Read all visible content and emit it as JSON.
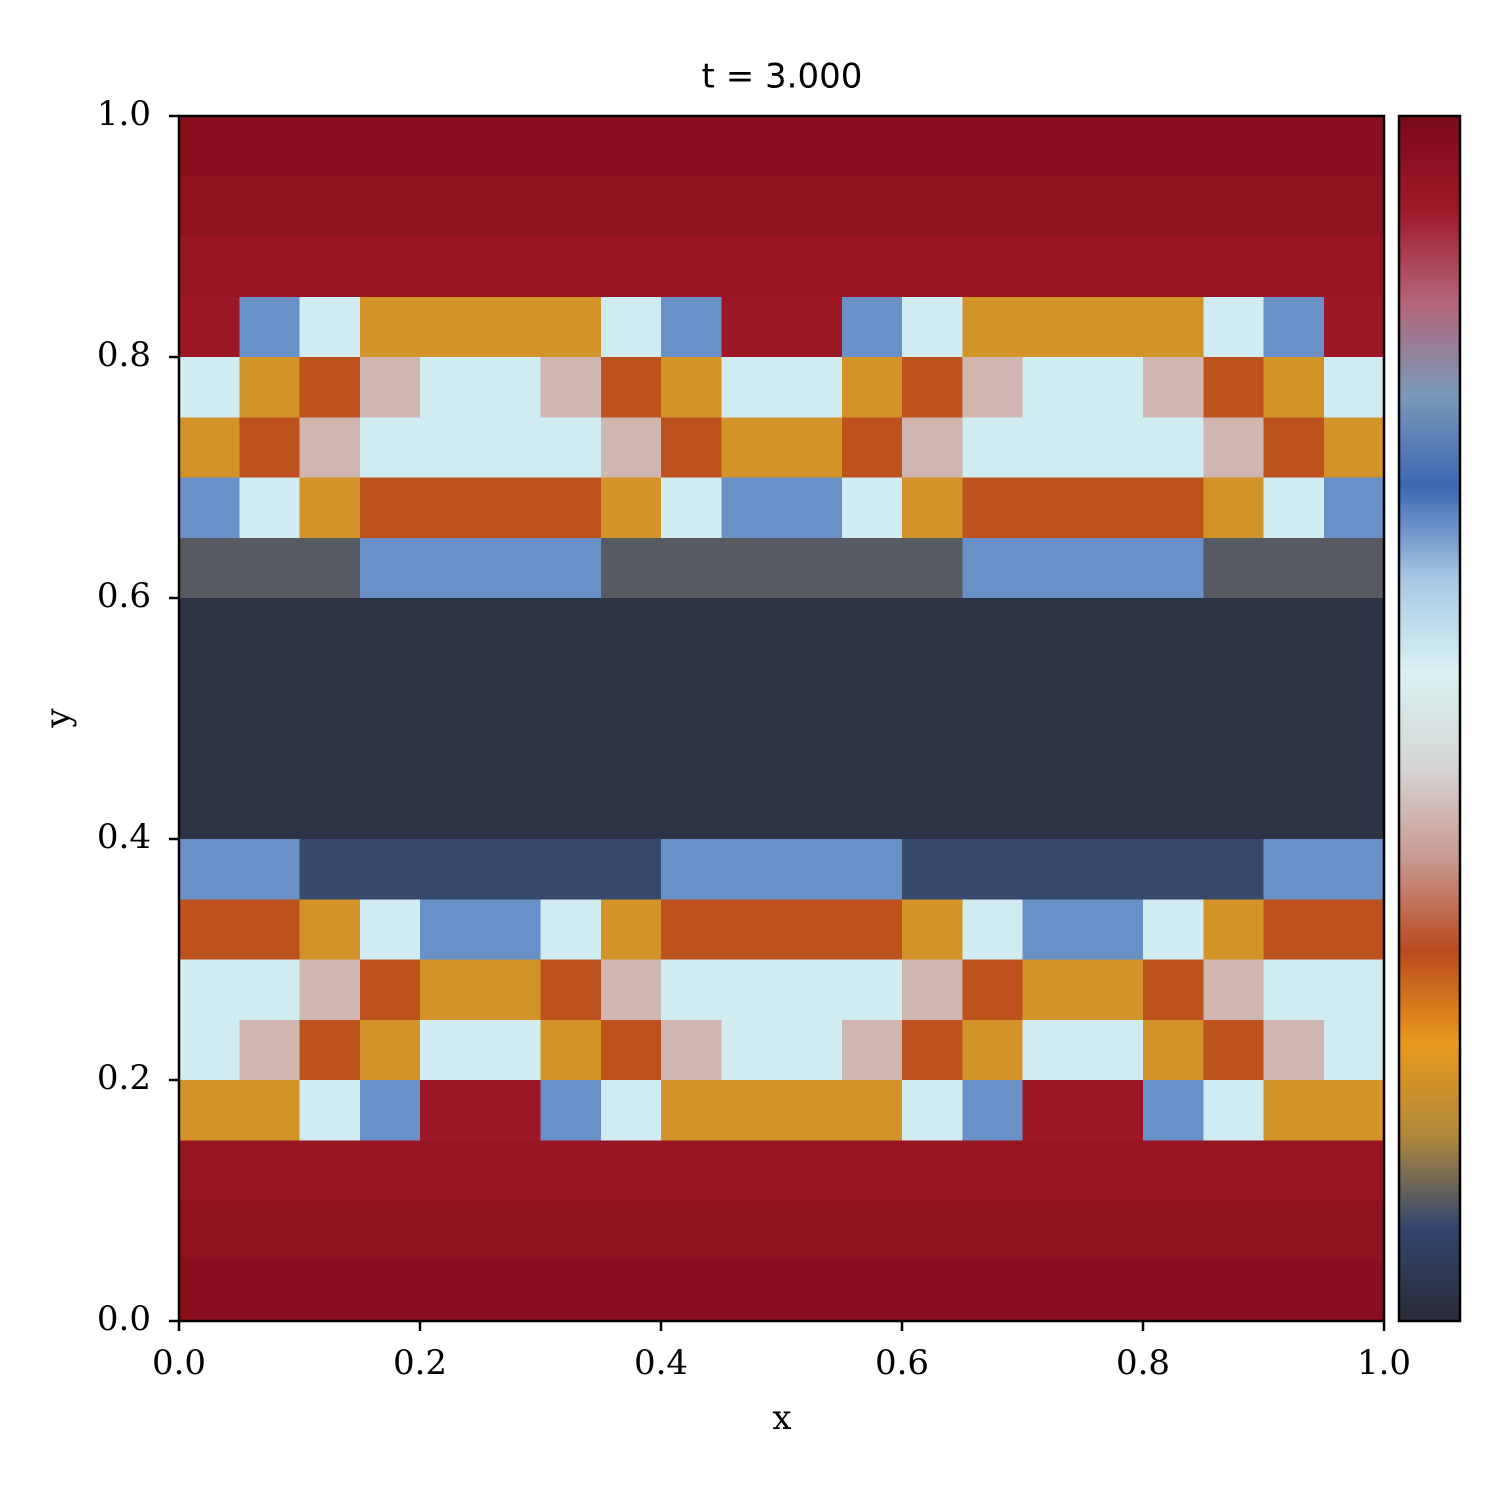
{
  "chart_data": {
    "type": "heatmap",
    "title": "t = 3.000",
    "xlabel": "x",
    "ylabel": "y",
    "xlim": [
      0,
      1
    ],
    "ylim": [
      0,
      1
    ],
    "xticks": [
      {
        "value": 0,
        "label": "0.0"
      },
      0.2,
      0.4,
      0.6,
      0.8,
      {
        "value": 1,
        "label": "1.0"
      }
    ],
    "yticks": [
      {
        "value": 0,
        "label": "0.0"
      },
      0.2,
      0.4,
      0.6,
      0.8,
      {
        "value": 1,
        "label": "1.0"
      }
    ],
    "zlim": [
      0,
      1
    ],
    "colormap": [
      "#2a2c36",
      "#31466f",
      "#b0883c",
      "#e89a1c",
      "#b84a1f",
      "#c99a90",
      "#d6d6d6",
      "#d8f2f2",
      "#a8c8e4",
      "#3c68b2",
      "#7a98b8",
      "#b46478",
      "#a01828",
      "#7a0a18"
    ],
    "colorbar": true,
    "z": [
      [
        0.97,
        0.97,
        0.97,
        0.97,
        0.97,
        0.97,
        0.97,
        0.97,
        0.97,
        0.97,
        0.97,
        0.97,
        0.97,
        0.97,
        0.97,
        0.97,
        0.97,
        0.97,
        0.97,
        0.97
      ],
      [
        0.96,
        0.96,
        0.96,
        0.96,
        0.96,
        0.96,
        0.96,
        0.96,
        0.96,
        0.96,
        0.96,
        0.96,
        0.96,
        0.96,
        0.96,
        0.96,
        0.96,
        0.96,
        0.96,
        0.96
      ],
      [
        0.94,
        0.94,
        0.94,
        0.94,
        0.94,
        0.94,
        0.94,
        0.94,
        0.94,
        0.94,
        0.94,
        0.94,
        0.94,
        0.94,
        0.94,
        0.94,
        0.94,
        0.94,
        0.94,
        0.94
      ],
      [
        0.93,
        0.66,
        0.55,
        0.2,
        0.2,
        0.2,
        0.2,
        0.55,
        0.66,
        0.93,
        0.93,
        0.66,
        0.55,
        0.2,
        0.2,
        0.2,
        0.2,
        0.55,
        0.66,
        0.93
      ],
      [
        0.55,
        0.2,
        0.3,
        0.42,
        0.55,
        0.55,
        0.42,
        0.3,
        0.2,
        0.55,
        0.55,
        0.2,
        0.3,
        0.42,
        0.55,
        0.55,
        0.42,
        0.3,
        0.2,
        0.55
      ],
      [
        0.2,
        0.3,
        0.42,
        0.55,
        0.55,
        0.55,
        0.55,
        0.42,
        0.3,
        0.2,
        0.2,
        0.3,
        0.42,
        0.55,
        0.55,
        0.55,
        0.55,
        0.42,
        0.3,
        0.2
      ],
      [
        0.66,
        0.55,
        0.2,
        0.3,
        0.3,
        0.3,
        0.3,
        0.2,
        0.55,
        0.66,
        0.66,
        0.55,
        0.2,
        0.3,
        0.3,
        0.3,
        0.3,
        0.2,
        0.55,
        0.66
      ],
      [
        0.1,
        0.1,
        0.1,
        0.66,
        0.66,
        0.66,
        0.66,
        0.1,
        0.1,
        0.1,
        0.1,
        0.1,
        0.1,
        0.66,
        0.66,
        0.66,
        0.66,
        0.1,
        0.1,
        0.1
      ],
      [
        0.02,
        0.02,
        0.02,
        0.02,
        0.02,
        0.02,
        0.02,
        0.02,
        0.02,
        0.02,
        0.02,
        0.02,
        0.02,
        0.02,
        0.02,
        0.02,
        0.02,
        0.02,
        0.02,
        0.02
      ],
      [
        0.02,
        0.02,
        0.02,
        0.02,
        0.02,
        0.02,
        0.02,
        0.02,
        0.02,
        0.02,
        0.02,
        0.02,
        0.02,
        0.02,
        0.02,
        0.02,
        0.02,
        0.02,
        0.02,
        0.02
      ],
      [
        0.02,
        0.02,
        0.02,
        0.02,
        0.02,
        0.02,
        0.02,
        0.02,
        0.02,
        0.02,
        0.02,
        0.02,
        0.02,
        0.02,
        0.02,
        0.02,
        0.02,
        0.02,
        0.02,
        0.02
      ],
      [
        0.02,
        0.02,
        0.02,
        0.02,
        0.02,
        0.02,
        0.02,
        0.02,
        0.02,
        0.02,
        0.02,
        0.02,
        0.02,
        0.02,
        0.02,
        0.02,
        0.02,
        0.02,
        0.02,
        0.02
      ],
      [
        0.66,
        0.66,
        0.08,
        0.08,
        0.08,
        0.08,
        0.08,
        0.08,
        0.66,
        0.66,
        0.66,
        0.66,
        0.08,
        0.08,
        0.08,
        0.08,
        0.08,
        0.08,
        0.66,
        0.66
      ],
      [
        0.3,
        0.3,
        0.2,
        0.55,
        0.66,
        0.66,
        0.55,
        0.2,
        0.3,
        0.3,
        0.3,
        0.3,
        0.2,
        0.55,
        0.66,
        0.66,
        0.55,
        0.2,
        0.3,
        0.3
      ],
      [
        0.55,
        0.55,
        0.42,
        0.3,
        0.2,
        0.2,
        0.3,
        0.42,
        0.55,
        0.55,
        0.55,
        0.55,
        0.42,
        0.3,
        0.2,
        0.2,
        0.3,
        0.42,
        0.55,
        0.55
      ],
      [
        0.55,
        0.42,
        0.3,
        0.2,
        0.55,
        0.55,
        0.2,
        0.3,
        0.42,
        0.55,
        0.55,
        0.42,
        0.3,
        0.2,
        0.55,
        0.55,
        0.2,
        0.3,
        0.42,
        0.55
      ],
      [
        0.2,
        0.2,
        0.55,
        0.66,
        0.93,
        0.93,
        0.66,
        0.55,
        0.2,
        0.2,
        0.2,
        0.2,
        0.55,
        0.66,
        0.93,
        0.93,
        0.66,
        0.55,
        0.2,
        0.2
      ],
      [
        0.94,
        0.94,
        0.94,
        0.94,
        0.94,
        0.94,
        0.94,
        0.94,
        0.94,
        0.94,
        0.94,
        0.94,
        0.94,
        0.94,
        0.94,
        0.94,
        0.94,
        0.94,
        0.94,
        0.94
      ],
      [
        0.96,
        0.96,
        0.96,
        0.96,
        0.96,
        0.96,
        0.96,
        0.96,
        0.96,
        0.96,
        0.96,
        0.96,
        0.96,
        0.96,
        0.96,
        0.96,
        0.96,
        0.96,
        0.96,
        0.96
      ],
      [
        0.97,
        0.97,
        0.97,
        0.97,
        0.97,
        0.97,
        0.97,
        0.97,
        0.97,
        0.97,
        0.97,
        0.97,
        0.97,
        0.97,
        0.97,
        0.97,
        0.97,
        0.97,
        0.97,
        0.97
      ]
    ]
  }
}
